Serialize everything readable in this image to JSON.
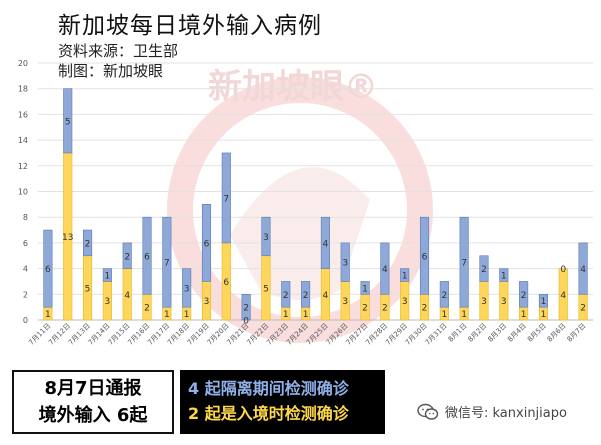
{
  "header": {
    "title": "新加坡每日境外输入病例",
    "source": "资料来源：卫生部",
    "maker": "制图：新加坡眼"
  },
  "watermark": {
    "text": "新加坡眼®"
  },
  "footer": {
    "report_line1": "8月7日通报",
    "report_line2": "境外输入 6起",
    "detail_line1": "4 起隔离期间检测确诊",
    "detail_line2": "2 起是入境时检测确诊",
    "wechat_label": "微信号: kanxinjiapo"
  },
  "colors": {
    "quarantine": "#8ea8d8",
    "arrival": "#ffd65c",
    "background": "#ffffff",
    "watermark": "#f2c7c7"
  },
  "chart_data": {
    "type": "bar",
    "stacked": true,
    "categories": [
      "7月11日",
      "7月12日",
      "7月13日",
      "7月14日",
      "7月15日",
      "7月16日",
      "7月17日",
      "7月18日",
      "7月19日",
      "7月20日",
      "7月21日",
      "7月22日",
      "7月23日",
      "7月24日",
      "7月25日",
      "7月26日",
      "7月27日",
      "7月28日",
      "7月29日",
      "7月30日",
      "7月31日",
      "8月1日",
      "8月2日",
      "8月3日",
      "8月4日",
      "8月5日",
      "8月6日",
      "8月7日"
    ],
    "series": [
      {
        "values": [
          1,
          13,
          5,
          3,
          4,
          2,
          1,
          1,
          3,
          6,
          0,
          5,
          1,
          1,
          4,
          3,
          2,
          2,
          3,
          2,
          1,
          1,
          3,
          3,
          1,
          1,
          4,
          2
        ]
      },
      {
        "values": [
          6,
          5,
          2,
          1,
          2,
          6,
          7,
          3,
          6,
          7,
          2,
          3,
          2,
          2,
          4,
          3,
          1,
          4,
          1,
          6,
          2,
          7,
          2,
          1,
          2,
          1,
          0,
          4
        ]
      }
    ],
    "ylim": [
      0,
      20
    ],
    "yticks": [
      0,
      2,
      4,
      6,
      8,
      10,
      12,
      14,
      16,
      18,
      20
    ],
    "grid": true,
    "legend": "none"
  }
}
